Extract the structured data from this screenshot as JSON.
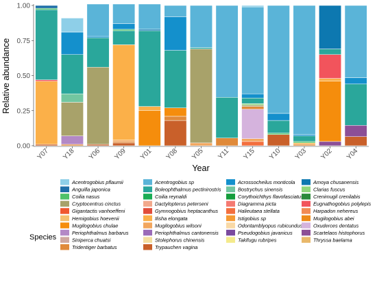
{
  "chart_data": {
    "type": "bar",
    "stacked": true,
    "xlabel": "Year",
    "ylabel": "Relative abundance",
    "ylim": [
      0,
      1
    ],
    "yticks": [
      0,
      0.25,
      0.5,
      0.75,
      1
    ],
    "ytick_labels": [
      "0.00",
      "0.25",
      "0.50",
      "0.75",
      "1.00"
    ],
    "categories": [
      "Y07",
      "Y18",
      "Y06",
      "Y09",
      "Y01",
      "Y08",
      "Y05",
      "Y11",
      "Y15",
      "Y10",
      "Y03",
      "Y02",
      "Y04"
    ],
    "legend": {
      "title": "Species",
      "placement": "bottom"
    },
    "species": [
      {
        "name": "Acentrogobius pflaumii",
        "color": "#8ecfe8"
      },
      {
        "name": "Acentrogobius sp",
        "color": "#5ab4d8"
      },
      {
        "name": "Acrossocheilus monticola",
        "color": "#1490cc"
      },
      {
        "name": "Amoya chusanensis",
        "color": "#0d78b0"
      },
      {
        "name": "Anguilla japonica",
        "color": "#1f6fa8"
      },
      {
        "name": "Boleophthalmus pectinirostris",
        "color": "#2aa79b"
      },
      {
        "name": "Bostrychus sinensis",
        "color": "#72c6a0"
      },
      {
        "name": "Clarias fuscus",
        "color": "#8fd67c"
      },
      {
        "name": "Coilia nasus",
        "color": "#4fc26a"
      },
      {
        "name": "Coilia reynaldi",
        "color": "#1aad55"
      },
      {
        "name": "Corythoichthys flavofasciatus",
        "color": "#159d3c"
      },
      {
        "name": "Crenimugil crenilabis",
        "color": "#2a8a3a"
      },
      {
        "name": "Cryptocentrus cinctus",
        "color": "#a8a26a"
      },
      {
        "name": "Dactylopterus peterseni",
        "color": "#f2a98c"
      },
      {
        "name": "Diagramma picta",
        "color": "#f47a72"
      },
      {
        "name": "Eugnathogobius polylepis",
        "color": "#f2545c"
      },
      {
        "name": "Gigantactis vanhoeffeni",
        "color": "#f0572f"
      },
      {
        "name": "Gymnogobius heptacanthus",
        "color": "#e14d3a"
      },
      {
        "name": "Halieutaea stellata",
        "color": "#f36f3e"
      },
      {
        "name": "Harpadon nehereus",
        "color": "#f28a52"
      },
      {
        "name": "Hemigobius hoevenii",
        "color": "#f5c06f"
      },
      {
        "name": "Ilisha elongata",
        "color": "#fbb049"
      },
      {
        "name": "Istigobius sp",
        "color": "#f59a33"
      },
      {
        "name": "Mugilogobius abei",
        "color": "#ee8a18"
      },
      {
        "name": "Mugilogobius chulae",
        "color": "#f58d0c"
      },
      {
        "name": "Mugilogobius wilsoni",
        "color": "#f2a65e"
      },
      {
        "name": "Odontamblyopus rubicundus",
        "color": "#f9d9a6"
      },
      {
        "name": "Oxuderces dentatus",
        "color": "#d5b3dd"
      },
      {
        "name": "Periophthalmus barbarus",
        "color": "#b389c6"
      },
      {
        "name": "Periophthalmus cantonensis",
        "color": "#9a6bb8"
      },
      {
        "name": "Pseudogobius javanicus",
        "color": "#7a4a9e"
      },
      {
        "name": "Scartelaos histophorus",
        "color": "#8c4f96"
      },
      {
        "name": "Siniperca chuatsi",
        "color": "#cfa8a0"
      },
      {
        "name": "Stolephorus chinensis",
        "color": "#f4dfa0"
      },
      {
        "name": "Takifugu rubripes",
        "color": "#f4ea8c"
      },
      {
        "name": "Thryssa baelama",
        "color": "#e9b86a"
      },
      {
        "name": "Tridentiger barbatus",
        "color": "#e08a3a"
      },
      {
        "name": "Trypauchen vagina",
        "color": "#c9602a"
      }
    ],
    "legend_order": [
      "Acentrogobius pflaumii",
      "Acentrogobius sp",
      "Acrossocheilus monticola",
      "Amoya chusanensis",
      "Anguilla japonica",
      "Boleophthalmus pectinirostris",
      "Bostrychus sinensis",
      "Clarias fuscus",
      "Coilia nasus",
      "Coilia reynaldi",
      "Corythoichthys flavofasciatus",
      "Crenimugil crenilabis",
      "Cryptocentrus cinctus",
      "Dactylopterus peterseni",
      "Diagramma picta",
      "Eugnathogobius polylepis",
      "Gigantactis vanhoeffeni",
      "Gymnogobius heptacanthus",
      "Halieutaea stellata",
      "Harpadon nehereus",
      "Hemigobius hoevenii",
      "Ilisha elongata",
      "Istigobius sp",
      "Mugilogobius abei",
      "Mugilogobius chulae",
      "Mugilogobius wilsoni",
      "Odontamblyopus rubicundus",
      "Oxuderces dentatus",
      "Periophthalmus barbarus",
      "Periophthalmus cantonensis",
      "Pseudogobius javanicus",
      "Scartelaos histophorus",
      "Siniperca chuatsi",
      "Stolephorus chinensis",
      "Takifugu rubripes",
      "Thryssa baelama",
      "Tridentiger barbatus",
      "Trypauchen vagina"
    ],
    "stacks": [
      {
        "category": "Y07",
        "segments": [
          [
            "Trypauchen vagina",
            0.01
          ],
          [
            "Ilisha elongata",
            0.45
          ],
          [
            "Eugnathogobius polylepis",
            0.01
          ],
          [
            "Boleophthalmus pectinirostris",
            0.5
          ],
          [
            "Coilia nasus",
            0.01
          ],
          [
            "Anguilla japonica",
            0.02
          ]
        ]
      },
      {
        "category": "Y18",
        "segments": [
          [
            "Tridentiger barbatus",
            0.01
          ],
          [
            "Periophthalmus barbarus",
            0.06
          ],
          [
            "Cryptocentrus cinctus",
            0.24
          ],
          [
            "Bostrychus sinensis",
            0.06
          ],
          [
            "Boleophthalmus pectinirostris",
            0.28
          ],
          [
            "Acrossocheilus monticola",
            0.16
          ],
          [
            "Acentrogobius pflaumii",
            0.1
          ]
        ]
      },
      {
        "category": "Y06",
        "segments": [
          [
            "Trypauchen vagina",
            0.01
          ],
          [
            "Cryptocentrus cinctus",
            0.55
          ],
          [
            "Boleophthalmus pectinirostris",
            0.21
          ],
          [
            "Acrossocheilus monticola",
            0.01
          ],
          [
            "Acentrogobius sp",
            0.23
          ]
        ]
      },
      {
        "category": "Y09",
        "segments": [
          [
            "Trypauchen vagina",
            0.02
          ],
          [
            "Tridentiger barbatus",
            0.01
          ],
          [
            "Mugilogobius wilsoni",
            0.01
          ],
          [
            "Ilisha elongata",
            0.68
          ],
          [
            "Boleophthalmus pectinirostris",
            0.1
          ],
          [
            "Coilia nasus",
            0.01
          ],
          [
            "Acrossocheilus monticola",
            0.04
          ],
          [
            "Acentrogobius sp",
            0.14
          ]
        ]
      },
      {
        "category": "Y01",
        "segments": [
          [
            "Mugilogobius chulae",
            0.25
          ],
          [
            "Ilisha elongata",
            0.03
          ],
          [
            "Boleophthalmus pectinirostris",
            0.54
          ],
          [
            "Amoya chusanensis",
            0.01
          ],
          [
            "Acentrogobius sp",
            0.18
          ]
        ]
      },
      {
        "category": "Y08",
        "segments": [
          [
            "Trypauchen vagina",
            0.18
          ],
          [
            "Tridentiger barbatus",
            0.03
          ],
          [
            "Mugilogobius chulae",
            0.06
          ],
          [
            "Boleophthalmus pectinirostris",
            0.41
          ],
          [
            "Acrossocheilus monticola",
            0.24
          ],
          [
            "Acentrogobius sp",
            0.08
          ]
        ]
      },
      {
        "category": "Y05",
        "segments": [
          [
            "Mugilogobius wilsoni",
            0.02
          ],
          [
            "Cryptocentrus cinctus",
            0.67
          ],
          [
            "Boleophthalmus pectinirostris",
            0.01
          ],
          [
            "Acentrogobius sp",
            0.3
          ]
        ]
      },
      {
        "category": "Y11",
        "segments": [
          [
            "Tridentiger barbatus",
            0.055
          ],
          [
            "Boleophthalmus pectinirostris",
            0.29
          ],
          [
            "Acentrogobius sp",
            0.655
          ]
        ]
      },
      {
        "category": "Y15",
        "segments": [
          [
            "Halieutaea stellata",
            0.03
          ],
          [
            "Mugilogobius wilsoni",
            0.02
          ],
          [
            "Oxuderces dentatus",
            0.21
          ],
          [
            "Tridentiger barbatus",
            0.02
          ],
          [
            "Cryptocentrus cinctus",
            0.01
          ],
          [
            "Clarias fuscus",
            0.01
          ],
          [
            "Boleophthalmus pectinirostris",
            0.04
          ],
          [
            "Acrossocheilus monticola",
            0.03
          ],
          [
            "Acentrogobius sp",
            0.62
          ],
          [
            "Acentrogobius pflaumii",
            0.01
          ]
        ]
      },
      {
        "category": "Y10",
        "segments": [
          [
            "Trypauchen vagina",
            0.08
          ],
          [
            "Coilia nasus",
            0.01
          ],
          [
            "Boleophthalmus pectinirostris",
            0.09
          ],
          [
            "Acrossocheilus monticola",
            0.05
          ],
          [
            "Acentrogobius sp",
            0.77
          ]
        ]
      },
      {
        "category": "Y03",
        "segments": [
          [
            "Tridentiger barbatus",
            0.01
          ],
          [
            "Ilisha elongata",
            0.01
          ],
          [
            "Coilia nasus",
            0.01
          ],
          [
            "Boleophthalmus pectinirostris",
            0.04
          ],
          [
            "Acrossocheilus monticola",
            0.01
          ],
          [
            "Acentrogobius sp",
            0.92
          ]
        ]
      },
      {
        "category": "Y02",
        "segments": [
          [
            "Scartelaos histophorus",
            0.03
          ],
          [
            "Mugilogobius chulae",
            0.43
          ],
          [
            "Ilisha elongata",
            0.02
          ],
          [
            "Eugnathogobius polylepis",
            0.17
          ],
          [
            "Boleophthalmus pectinirostris",
            0.04
          ],
          [
            "Amoya chusanensis",
            0.31
          ]
        ]
      },
      {
        "category": "Y04",
        "segments": [
          [
            "Trypauchen vagina",
            0.065
          ],
          [
            "Scartelaos histophorus",
            0.08
          ],
          [
            "Boleophthalmus pectinirostris",
            0.295
          ],
          [
            "Acrossocheilus monticola",
            0.045
          ],
          [
            "Acentrogobius sp",
            0.515
          ]
        ]
      }
    ]
  }
}
